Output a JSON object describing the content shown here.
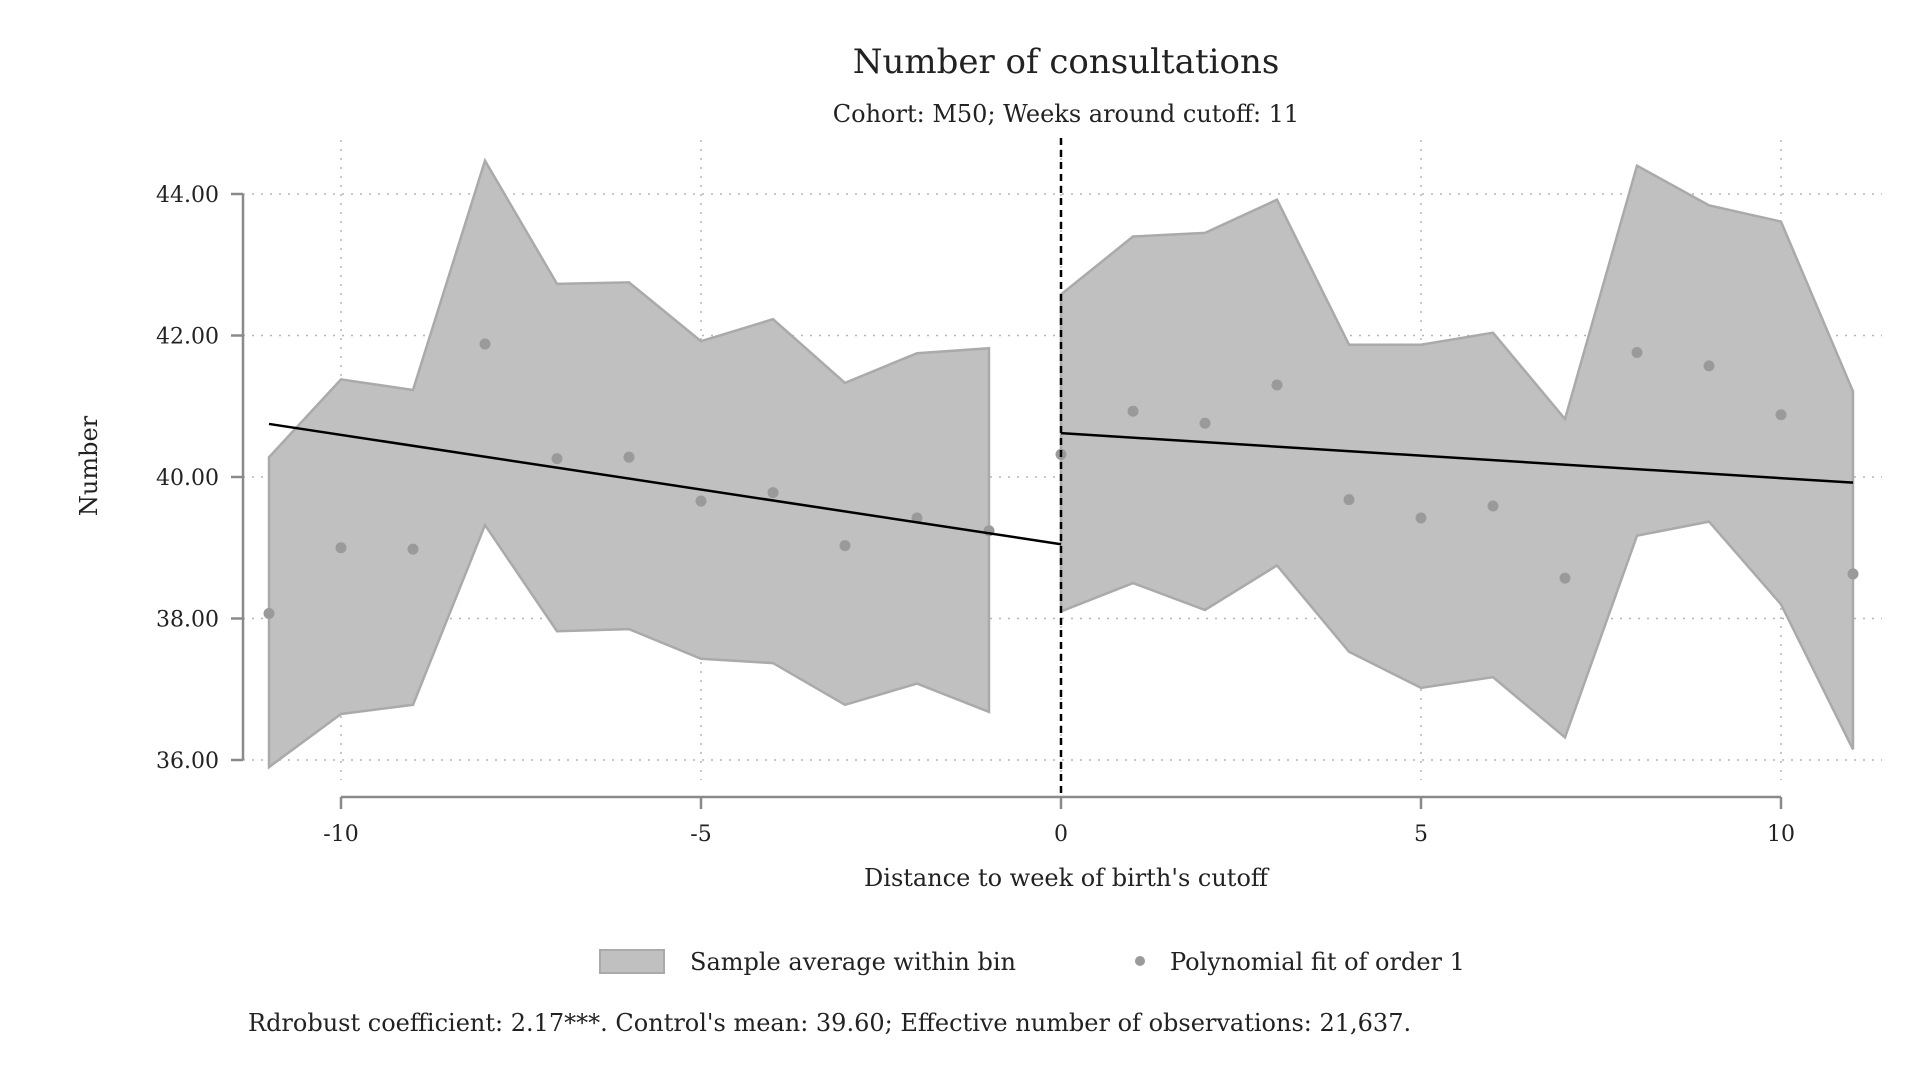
{
  "chart_data": {
    "type": "scatter",
    "title": "Number of consultations",
    "subtitle": "Cohort: M50; Weeks around cutoff: 11",
    "xlabel": "Distance to week of birth's cutoff",
    "ylabel": "Number",
    "xlim": [
      -11.2,
      11.2
    ],
    "ylim": [
      35.5,
      44.5
    ],
    "x_ticks": [
      -10,
      -5,
      0,
      5,
      10
    ],
    "x_tick_labels": [
      "-10",
      "-5",
      "0",
      "5",
      "10"
    ],
    "y_ticks": [
      36,
      38,
      40,
      42,
      44
    ],
    "y_tick_labels": [
      "36.00",
      "38.00",
      "40.00",
      "42.00",
      "44.00"
    ],
    "grid": true,
    "cutoff_x": 0,
    "series": [
      {
        "name": "Sample average within bin",
        "kind": "band",
        "segments": [
          {
            "x": [
              -11,
              -10,
              -9,
              -8,
              -7,
              -6,
              -5,
              -4,
              -3,
              -2,
              -1
            ],
            "lower": [
              35.9,
              36.65,
              36.78,
              39.32,
              37.82,
              37.85,
              37.43,
              37.37,
              36.78,
              37.08,
              36.68
            ],
            "upper": [
              40.28,
              41.38,
              41.23,
              44.47,
              42.73,
              42.75,
              41.92,
              42.23,
              41.33,
              41.75,
              41.82
            ]
          },
          {
            "x": [
              0,
              1,
              2,
              3,
              4,
              5,
              6,
              7,
              8,
              9,
              10,
              11
            ],
            "lower": [
              38.1,
              38.5,
              38.12,
              38.75,
              37.53,
              37.02,
              37.17,
              36.32,
              39.17,
              39.37,
              38.2,
              36.15
            ],
            "upper": [
              42.58,
              43.4,
              43.45,
              43.92,
              41.87,
              41.87,
              42.04,
              40.82,
              44.4,
              43.84,
              43.61,
              41.21
            ]
          }
        ]
      },
      {
        "name": "Polynomial fit of order 1",
        "kind": "points",
        "x": [
          -11,
          -10,
          -9,
          -8,
          -7,
          -6,
          -5,
          -4,
          -3,
          -2,
          -1,
          0,
          1,
          2,
          3,
          4,
          5,
          6,
          7,
          8,
          9,
          10,
          11
        ],
        "y": [
          38.07,
          39.0,
          38.98,
          41.88,
          40.26,
          40.28,
          39.66,
          39.78,
          39.03,
          39.42,
          39.24,
          40.32,
          40.93,
          40.76,
          41.3,
          39.68,
          39.42,
          39.59,
          38.57,
          41.76,
          41.57,
          40.88,
          38.63
        ]
      },
      {
        "kind": "fit-line",
        "segments": [
          {
            "x": [
              -11,
              0
            ],
            "y": [
              40.75,
              39.05
            ]
          },
          {
            "x": [
              0,
              11
            ],
            "y": [
              40.62,
              39.92
            ]
          }
        ]
      }
    ],
    "legend": [
      {
        "label": "Sample average within bin",
        "marker": "area"
      },
      {
        "label": "Polynomial fit of order 1",
        "marker": "dot"
      }
    ],
    "legend_position": "bottom",
    "note": "Rdrobust coefficient: 2.17***. Control's mean: 39.60; Effective number of observations: 21,637.",
    "colors": {
      "band_fill": "#c0c0c0",
      "band_edge": "#aaaaaa",
      "points": "#9a9a9a",
      "fit_line": "#000000",
      "axis": "#8a8a8a",
      "grid": "#b5b5b5"
    }
  }
}
